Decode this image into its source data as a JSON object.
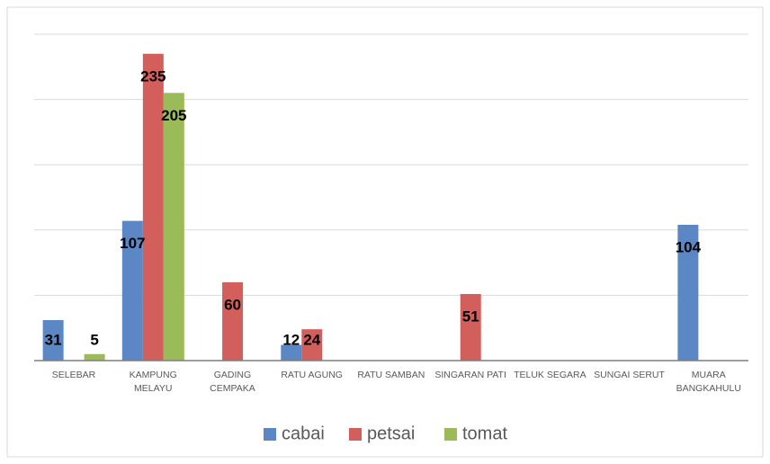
{
  "chart_data": {
    "type": "bar",
    "categories": [
      "SELEBAR",
      "KAMPUNG\nMELAYU",
      "GADING\nCEMPAKA",
      "RATU AGUNG",
      "RATU SAMBAN",
      "SINGARAN PATI",
      "TELUK SEGARA",
      "SUNGAI SERUT",
      "MUARA\nBANGKAHULU"
    ],
    "series": [
      {
        "name": "cabai",
        "color": "#5b87c5",
        "values": [
          31,
          107,
          null,
          12,
          null,
          null,
          null,
          null,
          104
        ]
      },
      {
        "name": "petsai",
        "color": "#d35f5d",
        "values": [
          null,
          235,
          60,
          24,
          null,
          51,
          null,
          null,
          null
        ]
      },
      {
        "name": "tomat",
        "color": "#9bbb59",
        "values": [
          5,
          205,
          null,
          null,
          null,
          null,
          null,
          null,
          null
        ]
      }
    ],
    "ylim": [
      0,
      250
    ],
    "yticks": [
      0,
      50,
      100,
      150,
      200,
      250
    ],
    "grid": true,
    "legend": "bottom"
  }
}
